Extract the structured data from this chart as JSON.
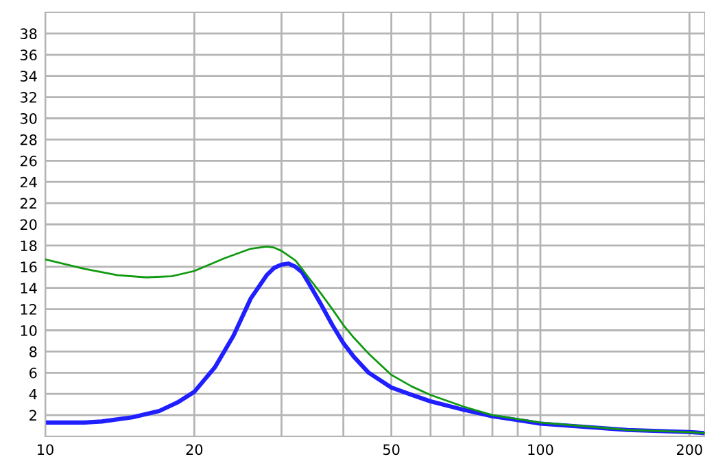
{
  "chart_data": {
    "type": "line",
    "log": "x",
    "grid": true,
    "xlim": [
      10,
      215
    ],
    "ylim": [
      0,
      40
    ],
    "xticks": [
      10,
      20,
      {
        "value": 30,
        "label": null
      },
      {
        "value": 40,
        "label": null
      },
      50,
      {
        "value": 60,
        "label": null
      },
      {
        "value": 70,
        "label": null
      },
      {
        "value": 80,
        "label": null
      },
      {
        "value": 90,
        "label": null
      },
      100,
      200
    ],
    "yticks": [
      2,
      4,
      6,
      8,
      10,
      12,
      14,
      16,
      18,
      20,
      22,
      24,
      26,
      28,
      30,
      32,
      34,
      36,
      38
    ],
    "series": [
      {
        "color": "#119911",
        "x": [
          10,
          12,
          14,
          16,
          18,
          20,
          23,
          26,
          28,
          29,
          30,
          32,
          33,
          34,
          36,
          38,
          40,
          42,
          45,
          50,
          55,
          60,
          70,
          80,
          100,
          150,
          200,
          215
        ],
        "values": [
          16.7,
          15.8,
          15.2,
          15,
          15.1,
          15.6,
          16.8,
          17.7,
          17.9,
          17.8,
          17.5,
          16.6,
          15.8,
          15,
          13.5,
          12,
          10.5,
          9.3,
          7.8,
          5.8,
          4.7,
          3.9,
          2.8,
          2.0,
          1.3,
          0.6,
          0.4,
          0.3
        ]
      },
      {
        "color": "#1f1fff",
        "x": [
          10,
          12,
          13,
          15,
          17,
          18.5,
          20,
          22,
          24,
          26,
          28,
          29,
          30,
          31,
          32,
          33,
          34,
          36,
          38,
          40,
          42,
          45,
          50,
          55,
          60,
          70,
          80,
          100,
          150,
          200,
          215
        ],
        "values": [
          1.3,
          1.3,
          1.4,
          1.8,
          2.4,
          3.2,
          4.2,
          6.5,
          9.5,
          13,
          15.2,
          15.9,
          16.2,
          16.3,
          16,
          15.5,
          14.5,
          12.5,
          10.5,
          8.8,
          7.5,
          6,
          4.6,
          3.9,
          3.3,
          2.5,
          1.9,
          1.2,
          0.6,
          0.4,
          0.3
        ]
      }
    ]
  }
}
